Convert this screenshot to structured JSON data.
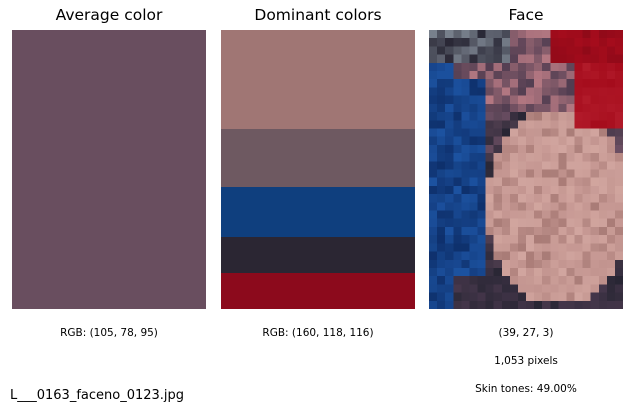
{
  "panels": {
    "average": {
      "title": "Average color",
      "color": "#694e5f",
      "caption": "RGB: (105, 78, 95)"
    },
    "dominant": {
      "title": "Dominant colors",
      "caption": "RGB: (160, 118, 116)",
      "bands": [
        {
          "color": "#a07674",
          "share": 0.356
        },
        {
          "color": "#6e5961",
          "share": 0.208
        },
        {
          "color": "#0f3f7e",
          "share": 0.179
        },
        {
          "color": "#2b2633",
          "share": 0.129
        },
        {
          "color": "#8c0a1c",
          "share": 0.128
        }
      ]
    },
    "face": {
      "title": "Face",
      "caption_rgb": "(39, 27, 3)",
      "caption_pixels": "1,053 pixels",
      "caption_skin": "Skin tones: 49.00%"
    }
  },
  "filename": "L___0163_faceno_0123.jpg"
}
